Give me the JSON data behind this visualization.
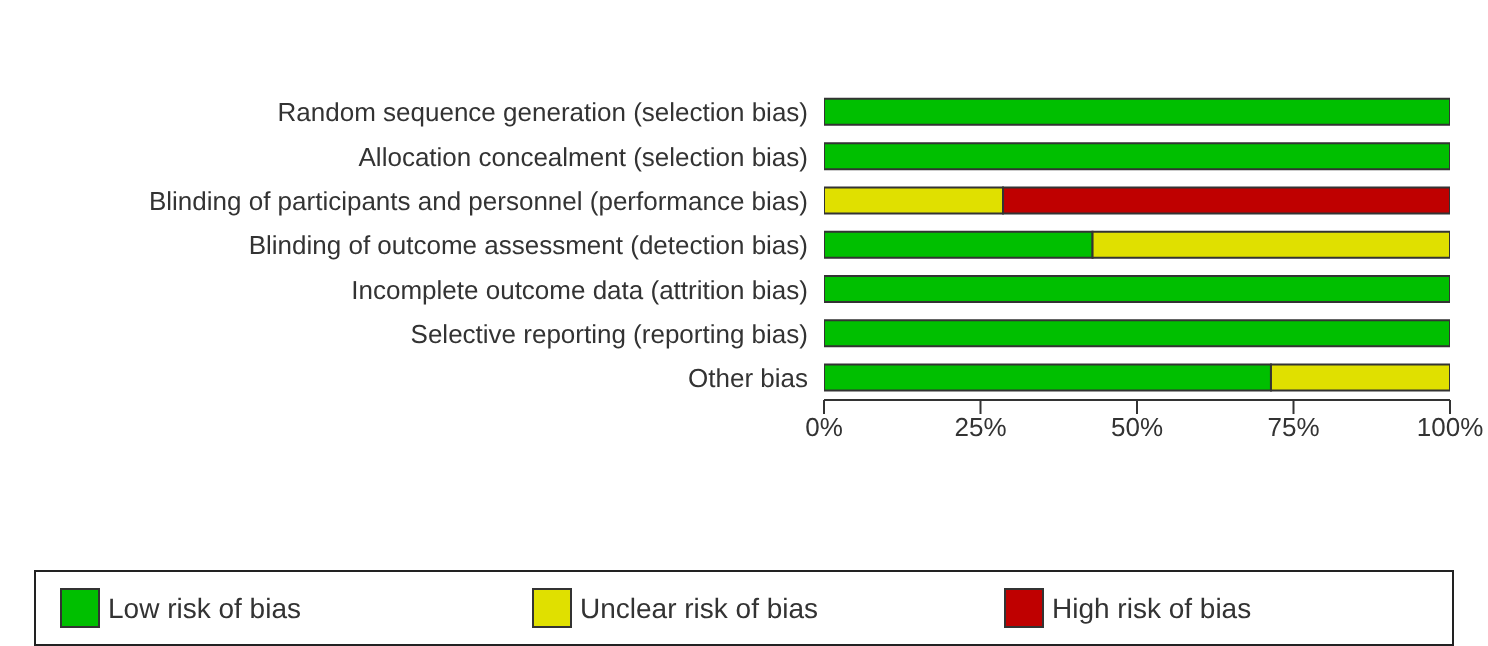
{
  "chart_data": {
    "type": "bar",
    "orientation": "horizontal",
    "stacked": true,
    "categories": [
      "Random sequence generation (selection bias)",
      "Allocation concealment (selection bias)",
      "Blinding of participants and personnel (performance bias)",
      "Blinding of outcome assessment (detection bias)",
      "Incomplete outcome data (attrition bias)",
      "Selective reporting (reporting bias)",
      "Other bias"
    ],
    "series": [
      {
        "name": "Low risk of bias",
        "color": "#00bf00",
        "values": [
          100,
          100,
          null,
          42.9,
          100,
          100,
          71.4
        ]
      },
      {
        "name": "Unclear risk of bias",
        "color": "#e0e000",
        "values": [
          null,
          null,
          28.6,
          57.1,
          null,
          null,
          28.6
        ]
      },
      {
        "name": "High risk of bias",
        "color": "#bf0000",
        "values": [
          null,
          null,
          71.4,
          null,
          null,
          null,
          null
        ]
      }
    ],
    "xlim": [
      0,
      100
    ],
    "xticks": [
      {
        "value": 0,
        "label": "0%"
      },
      {
        "value": 25,
        "label": "25%"
      },
      {
        "value": 50,
        "label": "50%"
      },
      {
        "value": 75,
        "label": "75%"
      },
      {
        "value": 100,
        "label": "100%"
      }
    ],
    "grid": false,
    "legend": "bottom"
  }
}
